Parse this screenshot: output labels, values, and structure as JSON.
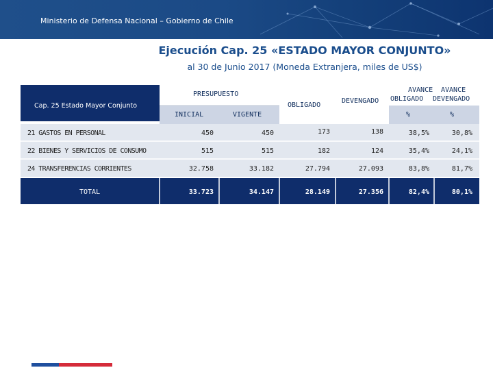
{
  "header": {
    "banner_text": "Ministerio de Defensa Nacional – Gobierno de Chile",
    "title": "Ejecución Cap. 25 «ESTADO MAYOR CONJUNTO»",
    "subtitle": "al 30 de Junio 2017 (Moneda Extranjera, miles de US$)"
  },
  "table": {
    "corner_label": "Cap. 25 Estado Mayor Conjunto",
    "group_presupuesto": "PRESUPUESTO",
    "col_inicial": "INICIAL",
    "col_vigente": "VIGENTE",
    "col_obligado": "OBLIGADO",
    "col_devengado": "DEVENGADO",
    "col_avance_obligado": "AVANCE OBLIGADO",
    "col_avance_obligado_l1": "AVANCE",
    "col_avance_obligado_l2": "OBLIGADO",
    "col_avance_devengado": "AVANCE DEVENGADO",
    "col_avance_devengado_l1": "AVANCE",
    "col_avance_devengado_l2": "DEVENGADO",
    "pct_symbol": "%",
    "rows": [
      {
        "label": "21 GASTOS EN PERSONAL",
        "inicial": "450",
        "vigente": "450",
        "obligado": "173",
        "devengado": "138",
        "av_obligado": "38,5%",
        "av_devengado": "30,8%"
      },
      {
        "label": "22 BIENES Y SERVICIOS DE CONSUMO",
        "inicial": "515",
        "vigente": "515",
        "obligado": "182",
        "devengado": "124",
        "av_obligado": "35,4%",
        "av_devengado": "24,1%"
      },
      {
        "label": "24 TRANSFERENCIAS CORRIENTES",
        "inicial": "32.758",
        "vigente": "33.182",
        "obligado": "27.794",
        "devengado": "27.093",
        "av_obligado": "83,8%",
        "av_devengado": "81,7%"
      }
    ],
    "total": {
      "label": "TOTAL",
      "inicial": "33.723",
      "vigente": "34.147",
      "obligado": "28.149",
      "devengado": "27.356",
      "av_obligado": "82,4%",
      "av_devengado": "80,1%"
    }
  },
  "colors": {
    "banner": "#1b4a86",
    "header_bg": "#ffffff",
    "subheader_bg": "#cdd5e4",
    "row_bg": "#e2e7ef",
    "total_bg": "#0f2d6b",
    "title": "#1a4d8c"
  }
}
